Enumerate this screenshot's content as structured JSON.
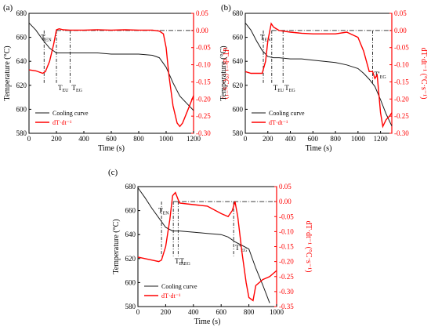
{
  "colors": {
    "cooling": "#1a1a1a",
    "rate": "#ff0000",
    "axis": "#000000"
  },
  "chart_data": [
    {
      "panel": "(a)",
      "type": "line",
      "xlabel": "Time (s)",
      "ylabel_left": "Temperature (°C)",
      "ylabel_right": "dT·dt⁻¹ (°C·s⁻¹)",
      "xlim": [
        0,
        1200
      ],
      "ylim_left": [
        580,
        680
      ],
      "ylim_right": [
        -0.3,
        0.05
      ],
      "xticks": [
        "0",
        "200",
        "400",
        "600",
        "800",
        "1000",
        "1200"
      ],
      "yticks_left": [
        "580",
        "600",
        "620",
        "640",
        "660",
        "680"
      ],
      "yticks_right": [
        "-0.30",
        "-0.25",
        "-0.20",
        "-0.15",
        "-0.10",
        "-0.05",
        "0.00",
        "0.05"
      ],
      "legend": [
        "Cooling curve",
        "dT·dt⁻¹"
      ],
      "legend_position": "bottom-left",
      "ref_line_y_right": 0.0,
      "annotations": [
        {
          "label": "T",
          "sub": "EN",
          "x": 110
        },
        {
          "label": "T",
          "sub": "EU",
          "x": 200
        },
        {
          "label": "T",
          "sub": "EG",
          "x": 300
        }
      ],
      "series": [
        {
          "name": "Cooling curve",
          "axis": "left",
          "x": [
            0,
            50,
            100,
            150,
            200,
            250,
            300,
            400,
            500,
            600,
            700,
            800,
            900,
            950,
            1000,
            1050,
            1100,
            1150,
            1200
          ],
          "y": [
            672,
            666,
            658,
            651,
            647,
            647,
            647,
            647,
            647,
            646,
            646,
            646,
            645,
            643,
            635,
            622,
            611,
            605,
            599
          ]
        },
        {
          "name": "dT·dt⁻¹",
          "axis": "right",
          "x": [
            0,
            50,
            100,
            120,
            150,
            180,
            200,
            220,
            250,
            300,
            400,
            500,
            600,
            700,
            800,
            900,
            950,
            980,
            1000,
            1020,
            1050,
            1080,
            1100,
            1120,
            1150,
            1180,
            1200
          ],
          "y": [
            -0.115,
            -0.118,
            -0.125,
            -0.12,
            -0.09,
            -0.04,
            0.002,
            0.005,
            0.002,
            0.001,
            0.001,
            0.002,
            0.001,
            0.002,
            0.001,
            0.001,
            -0.002,
            -0.01,
            -0.05,
            -0.13,
            -0.22,
            -0.27,
            -0.28,
            -0.27,
            -0.24,
            -0.21,
            -0.19
          ]
        }
      ]
    },
    {
      "panel": "(b)",
      "type": "line",
      "xlabel": "Time (s)",
      "ylabel_left": "Temperature (°C)",
      "ylabel_right": "dT·dt⁻¹ (°C·s⁻¹)",
      "xlim": [
        0,
        1300
      ],
      "ylim_left": [
        580,
        680
      ],
      "ylim_right": [
        -0.3,
        0.05
      ],
      "xticks": [
        "0",
        "200",
        "400",
        "600",
        "800",
        "1000",
        "1200"
      ],
      "yticks_left": [
        "580",
        "600",
        "620",
        "640",
        "660",
        "680"
      ],
      "yticks_right": [
        "-0.30",
        "-0.25",
        "-0.20",
        "-0.15",
        "-0.10",
        "-0.05",
        "0.00",
        "0.05"
      ],
      "legend": [
        "Cooling curve",
        "dT·dt⁻¹"
      ],
      "legend_position": "bottom-left",
      "ref_line_y_right": 0.0,
      "annotations": [
        {
          "label": "T",
          "sub": "EN",
          "x": 160
        },
        {
          "label": "T",
          "sub": "EU",
          "x": 235
        },
        {
          "label": "T",
          "sub": "EG",
          "x": 335
        },
        {
          "label": "T'",
          "sub": "EG",
          "x": 1130
        }
      ],
      "series": [
        {
          "name": "Cooling curve",
          "axis": "left",
          "x": [
            0,
            50,
            100,
            150,
            200,
            250,
            300,
            400,
            500,
            600,
            700,
            800,
            900,
            1000,
            1050,
            1100,
            1150,
            1200,
            1250,
            1300
          ],
          "y": [
            672,
            666,
            657,
            649,
            644,
            643,
            643,
            642,
            642,
            641,
            640,
            639,
            637,
            634,
            630,
            625,
            619,
            608,
            596,
            586
          ]
        },
        {
          "name": "dT·dt⁻¹",
          "axis": "right",
          "x": [
            0,
            50,
            100,
            150,
            180,
            200,
            230,
            250,
            300,
            400,
            500,
            600,
            700,
            800,
            900,
            1000,
            1050,
            1100,
            1130,
            1150,
            1170,
            1200,
            1220,
            1250,
            1280,
            1300
          ],
          "y": [
            -0.12,
            -0.125,
            -0.125,
            -0.125,
            -0.09,
            -0.03,
            0.02,
            0.01,
            0.0,
            -0.005,
            -0.008,
            -0.01,
            -0.01,
            -0.01,
            -0.005,
            -0.02,
            -0.06,
            -0.12,
            -0.12,
            -0.14,
            -0.13,
            -0.24,
            -0.28,
            -0.26,
            -0.25,
            -0.24
          ]
        }
      ]
    },
    {
      "panel": "(c)",
      "type": "line",
      "xlabel": "Time (s)",
      "ylabel_left": "Temperature (°C)",
      "ylabel_right": "dT·dt⁻¹ (°C·s⁻¹)",
      "xlim": [
        0,
        1000
      ],
      "ylim_left": [
        580,
        680
      ],
      "ylim_right": [
        -0.35,
        0.05
      ],
      "xticks": [
        "0",
        "200",
        "400",
        "600",
        "800",
        "1000"
      ],
      "yticks_left": [
        "580",
        "600",
        "620",
        "640",
        "660",
        "680"
      ],
      "yticks_right": [
        "-0.35",
        "-0.30",
        "-0.25",
        "-0.20",
        "-0.15",
        "-0.10",
        "-0.05",
        "0.00",
        "0.05"
      ],
      "legend": [
        "Cooling curve",
        "dT·dt⁻¹"
      ],
      "legend_position": "bottom-left",
      "ref_line_y_right": 0.0,
      "annotations": [
        {
          "label": "T",
          "sub": "EN",
          "x": 170
        },
        {
          "label": "T",
          "sub": "EU",
          "x": 255
        },
        {
          "label": "T",
          "sub": "EG",
          "x": 290
        },
        {
          "label": "T'",
          "sub": "EG",
          "x": 690
        }
      ],
      "series": [
        {
          "name": "Cooling curve",
          "axis": "left",
          "x": [
            0,
            50,
            100,
            150,
            200,
            250,
            300,
            400,
            500,
            600,
            650,
            700,
            750,
            800,
            850,
            900,
            950
          ],
          "y": [
            679,
            671,
            662,
            654,
            646,
            643,
            643,
            642,
            641,
            640,
            638,
            634,
            631,
            628,
            612,
            598,
            583
          ]
        },
        {
          "name": "dT·dt⁻¹",
          "axis": "right",
          "x": [
            0,
            50,
            100,
            150,
            170,
            200,
            230,
            250,
            270,
            300,
            400,
            500,
            600,
            650,
            680,
            700,
            720,
            750,
            780,
            800,
            830,
            850,
            900,
            950,
            1000
          ],
          "y": [
            -0.185,
            -0.19,
            -0.195,
            -0.2,
            -0.195,
            -0.15,
            -0.06,
            0.02,
            0.03,
            -0.005,
            -0.01,
            -0.015,
            -0.04,
            -0.05,
            -0.03,
            0.0,
            -0.05,
            -0.17,
            -0.27,
            -0.32,
            -0.33,
            -0.28,
            -0.26,
            -0.25,
            -0.23
          ]
        }
      ]
    }
  ]
}
